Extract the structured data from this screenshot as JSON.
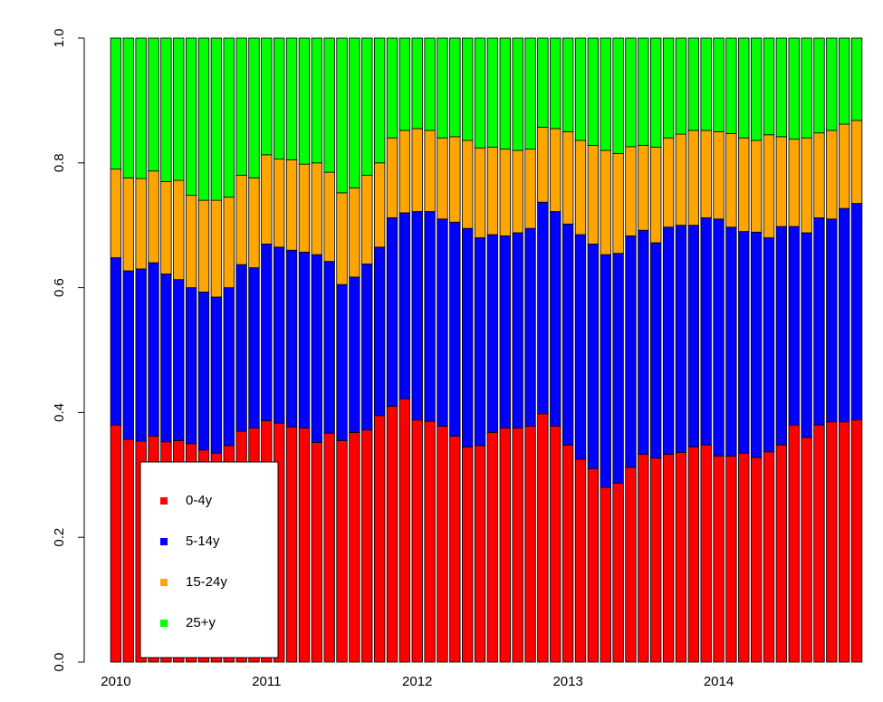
{
  "chart_data": {
    "type": "stacked_bar",
    "categories": [
      "2010",
      null,
      null,
      null,
      null,
      null,
      null,
      null,
      null,
      null,
      null,
      null,
      "2011",
      null,
      null,
      null,
      null,
      null,
      null,
      null,
      null,
      null,
      null,
      null,
      "2012",
      null,
      null,
      null,
      null,
      null,
      null,
      null,
      null,
      null,
      null,
      null,
      "2013",
      null,
      null,
      null,
      null,
      null,
      null,
      null,
      null,
      null,
      null,
      null,
      "2014",
      null,
      null,
      null,
      null,
      null,
      null,
      null,
      null,
      null,
      null,
      null
    ],
    "series": [
      {
        "name": "0-4y",
        "color": "#ff0000",
        "values": [
          0.38,
          0.357,
          0.354,
          0.362,
          0.353,
          0.355,
          0.35,
          0.34,
          0.335,
          0.347,
          0.37,
          0.375,
          0.387,
          0.383,
          0.377,
          0.375,
          0.352,
          0.367,
          0.355,
          0.368,
          0.372,
          0.395,
          0.41,
          0.422,
          0.388,
          0.386,
          0.378,
          0.362,
          0.345,
          0.347,
          0.368,
          0.375,
          0.375,
          0.378,
          0.398,
          0.378,
          0.348,
          0.325,
          0.31,
          0.28,
          0.287,
          0.312,
          0.333,
          0.327,
          0.333,
          0.336,
          0.345,
          0.348,
          0.33,
          0.33,
          0.335,
          0.328,
          0.337,
          0.348,
          0.38,
          0.36,
          0.38,
          0.385,
          0.385,
          0.388
        ]
      },
      {
        "name": "5-14y",
        "color": "#0000ff",
        "values": [
          0.268,
          0.27,
          0.276,
          0.278,
          0.269,
          0.258,
          0.25,
          0.253,
          0.25,
          0.253,
          0.267,
          0.257,
          0.283,
          0.282,
          0.283,
          0.282,
          0.301,
          0.275,
          0.25,
          0.249,
          0.266,
          0.27,
          0.302,
          0.298,
          0.334,
          0.336,
          0.332,
          0.343,
          0.35,
          0.333,
          0.317,
          0.308,
          0.313,
          0.317,
          0.339,
          0.344,
          0.354,
          0.36,
          0.36,
          0.373,
          0.368,
          0.371,
          0.359,
          0.345,
          0.364,
          0.364,
          0.355,
          0.364,
          0.38,
          0.367,
          0.355,
          0.361,
          0.343,
          0.35,
          0.318,
          0.328,
          0.332,
          0.325,
          0.342,
          0.347
        ]
      },
      {
        "name": "15-24y",
        "color": "#ffa500",
        "values": [
          0.142,
          0.149,
          0.145,
          0.147,
          0.148,
          0.159,
          0.148,
          0.147,
          0.155,
          0.145,
          0.143,
          0.144,
          0.143,
          0.141,
          0.145,
          0.141,
          0.147,
          0.143,
          0.147,
          0.143,
          0.142,
          0.135,
          0.128,
          0.132,
          0.133,
          0.13,
          0.13,
          0.137,
          0.141,
          0.144,
          0.14,
          0.139,
          0.132,
          0.127,
          0.12,
          0.133,
          0.148,
          0.151,
          0.158,
          0.167,
          0.16,
          0.143,
          0.136,
          0.153,
          0.143,
          0.146,
          0.152,
          0.14,
          0.14,
          0.15,
          0.15,
          0.147,
          0.165,
          0.144,
          0.14,
          0.152,
          0.136,
          0.142,
          0.135,
          0.133
        ]
      },
      {
        "name": "25+y",
        "color": "#00ff00",
        "values": [
          0.21,
          0.224,
          0.225,
          0.213,
          0.23,
          0.228,
          0.252,
          0.26,
          0.26,
          0.255,
          0.22,
          0.224,
          0.187,
          0.194,
          0.195,
          0.202,
          0.2,
          0.215,
          0.248,
          0.24,
          0.22,
          0.2,
          0.16,
          0.148,
          0.145,
          0.148,
          0.16,
          0.158,
          0.164,
          0.176,
          0.175,
          0.178,
          0.18,
          0.178,
          0.143,
          0.145,
          0.15,
          0.164,
          0.172,
          0.18,
          0.185,
          0.174,
          0.172,
          0.175,
          0.16,
          0.154,
          0.148,
          0.148,
          0.15,
          0.153,
          0.16,
          0.164,
          0.155,
          0.158,
          0.162,
          0.16,
          0.152,
          0.148,
          0.138,
          0.132
        ]
      }
    ],
    "ylim": [
      0,
      1
    ],
    "yticks": [
      {
        "value": 0,
        "label": "0.0"
      },
      0.2,
      0.4,
      0.6,
      0.8,
      {
        "value": 1,
        "label": "1.0"
      }
    ],
    "legend": "bottomleft"
  }
}
